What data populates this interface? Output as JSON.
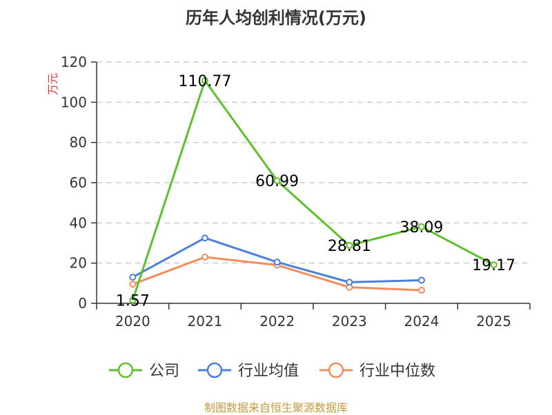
{
  "chart_data": {
    "type": "line",
    "title": "历年人均创利情况(万元)",
    "ylabel": "万元",
    "xlabel": "",
    "categories": [
      "2020",
      "2021",
      "2022",
      "2023",
      "2024",
      "2025"
    ],
    "ylim": [
      0,
      120
    ],
    "yticks": [
      "0",
      "20",
      "40",
      "60",
      "80",
      "100",
      "120"
    ],
    "grid": true,
    "legend_position": "bottom",
    "series": [
      {
        "name": "公司",
        "color": "#5cc02b",
        "values": [
          1.57,
          110.77,
          60.99,
          28.81,
          38.09,
          19.17
        ],
        "labels": [
          "1.57",
          "110.77",
          "60.99",
          "28.81",
          "38.09",
          "19.17"
        ]
      },
      {
        "name": "行业均值",
        "color": "#4a7fdc",
        "values": [
          13,
          32.5,
          20.5,
          10.5,
          11.5,
          null
        ]
      },
      {
        "name": "行业中位数",
        "color": "#f48c5a",
        "values": [
          9.5,
          23,
          19,
          8,
          6.5,
          null
        ]
      }
    ]
  },
  "source": "制图数据来自恒生聚源数据库"
}
